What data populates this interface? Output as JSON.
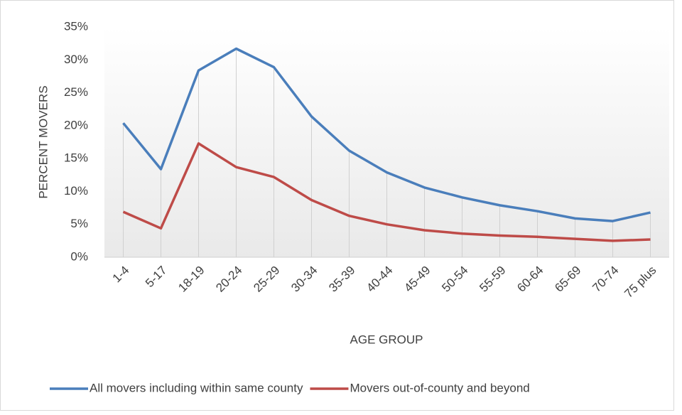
{
  "chart_data": {
    "type": "line",
    "x_label": "AGE GROUP",
    "y_label": "PERCENT MOVERS",
    "categories": [
      "1-4",
      "5-17",
      "18-19",
      "20-24",
      "25-29",
      "30-34",
      "35-39",
      "40-44",
      "45-49",
      "50-54",
      "55-59",
      "60-64",
      "65-69",
      "70-74",
      "75 plus"
    ],
    "series": [
      {
        "name": "All movers including within same county",
        "color": "#4a7ebb",
        "values": [
          20.4,
          13.4,
          28.4,
          31.7,
          28.9,
          21.4,
          16.2,
          12.9,
          10.6,
          9.1,
          7.9,
          7.0,
          5.9,
          5.5,
          6.8
        ]
      },
      {
        "name": "Movers out-of-county and beyond",
        "color": "#be4b48",
        "values": [
          6.9,
          4.4,
          17.3,
          13.7,
          12.2,
          8.7,
          6.3,
          5.0,
          4.1,
          3.6,
          3.3,
          3.1,
          2.8,
          2.5,
          2.7
        ]
      }
    ],
    "ylim": [
      0,
      35
    ],
    "yticks": [
      {
        "value": 0,
        "label": "0%"
      },
      {
        "value": 5,
        "label": "5%"
      },
      {
        "value": 10,
        "label": "10%"
      },
      {
        "value": 15,
        "label": "15%"
      },
      {
        "value": 20,
        "label": "20%"
      },
      {
        "value": 25,
        "label": "25%"
      },
      {
        "value": 30,
        "label": "30%"
      },
      {
        "value": 35,
        "label": "35%"
      }
    ],
    "drop_lines": true,
    "legend": "bottom"
  }
}
